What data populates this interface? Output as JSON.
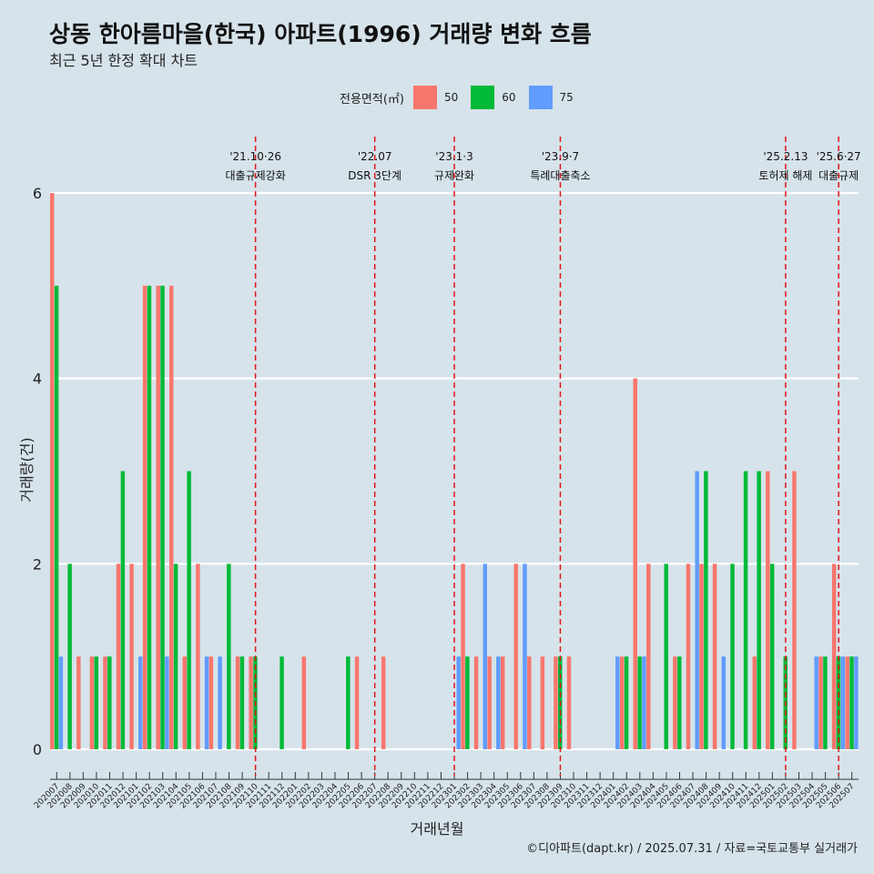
{
  "title": "상동 한아름마을(한국) 아파트(1996) 거래량 변화 흐름",
  "subtitle": "최근 5년 한정 확대 차트",
  "caption": "©디아파트(dapt.kr) / 2025.07.31 / 자료=국토교통부 실거래가",
  "legend": {
    "title": "전용면적(㎡)",
    "items": [
      {
        "label": "50",
        "color": "#f8766d"
      },
      {
        "label": "60",
        "color": "#00ba38"
      },
      {
        "label": "75",
        "color": "#619cff"
      }
    ]
  },
  "chart_data": {
    "type": "bar",
    "xlabel": "거래년월",
    "ylabel": "거래량(건)",
    "ylim": [
      0,
      6
    ],
    "yticks": [
      0,
      2,
      4,
      6
    ],
    "grid": true,
    "legend_position": "top",
    "categories": [
      "202007",
      "202008",
      "202009",
      "202010",
      "202011",
      "202012",
      "202101",
      "202102",
      "202103",
      "202104",
      "202105",
      "202106",
      "202107",
      "202108",
      "202109",
      "202110",
      "202111",
      "202112",
      "202201",
      "202202",
      "202203",
      "202204",
      "202205",
      "202206",
      "202207",
      "202208",
      "202209",
      "202210",
      "202211",
      "202212",
      "202301",
      "202302",
      "202303",
      "202304",
      "202305",
      "202306",
      "202307",
      "202308",
      "202309",
      "202310",
      "202311",
      "202312",
      "202401",
      "202402",
      "202403",
      "202404",
      "202405",
      "202406",
      "202407",
      "202408",
      "202409",
      "202410",
      "202411",
      "202412",
      "202501",
      "202502",
      "202503",
      "202504",
      "202505",
      "202506",
      "202507"
    ],
    "series": [
      {
        "name": "50",
        "color": "#f8766d",
        "values": [
          6,
          0,
          1,
          1,
          1,
          2,
          2,
          5,
          5,
          5,
          1,
          2,
          1,
          0,
          1,
          1,
          0,
          0,
          0,
          1,
          0,
          0,
          0,
          1,
          0,
          1,
          0,
          0,
          0,
          0,
          0,
          2,
          1,
          1,
          1,
          2,
          1,
          1,
          1,
          1,
          0,
          0,
          0,
          1,
          4,
          2,
          0,
          1,
          2,
          2,
          2,
          0,
          0,
          1,
          3,
          0,
          3,
          0,
          1,
          2,
          1
        ]
      },
      {
        "name": "60",
        "color": "#00ba38",
        "values": [
          5,
          2,
          0,
          1,
          1,
          3,
          0,
          5,
          5,
          2,
          3,
          0,
          0,
          2,
          1,
          1,
          0,
          1,
          0,
          0,
          0,
          0,
          1,
          0,
          0,
          0,
          0,
          0,
          0,
          0,
          0,
          1,
          0,
          0,
          0,
          0,
          0,
          0,
          1,
          0,
          0,
          0,
          0,
          1,
          1,
          0,
          2,
          1,
          0,
          3,
          0,
          2,
          3,
          3,
          2,
          1,
          0,
          0,
          1,
          1,
          1
        ]
      },
      {
        "name": "75",
        "color": "#619cff",
        "values": [
          1,
          0,
          0,
          0,
          0,
          0,
          1,
          0,
          1,
          0,
          0,
          1,
          1,
          0,
          0,
          0,
          0,
          0,
          0,
          0,
          0,
          0,
          0,
          0,
          0,
          0,
          0,
          0,
          0,
          0,
          1,
          0,
          2,
          1,
          0,
          2,
          0,
          0,
          0,
          0,
          0,
          0,
          1,
          0,
          1,
          0,
          0,
          0,
          3,
          0,
          1,
          0,
          0,
          0,
          0,
          0,
          0,
          1,
          0,
          1,
          1
        ]
      }
    ],
    "events": [
      {
        "month": "202110",
        "date": "'21.10·26",
        "label": "대출규제강화"
      },
      {
        "month": "202207",
        "date": "'22.07",
        "label": "DSR 3단계"
      },
      {
        "month": "202301",
        "date": "'23.1·3",
        "label": "규제완화"
      },
      {
        "month": "202309",
        "date": "'23.9·7",
        "label": "특례대출축소"
      },
      {
        "month": "202502",
        "date": "'25.2.13",
        "label": "토허제 해제"
      },
      {
        "month": "202506",
        "date": "'25.6·27",
        "label": "대출규제"
      }
    ]
  }
}
